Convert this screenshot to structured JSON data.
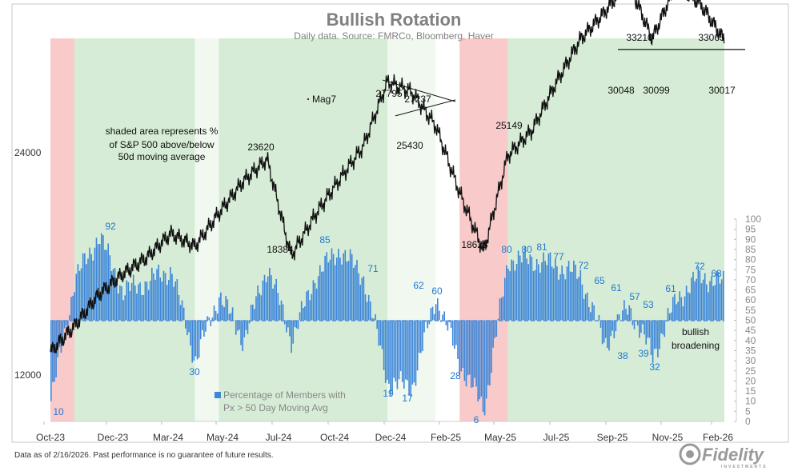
{
  "chart_data": {
    "type": "line",
    "title": "Bullish Rotation",
    "subtitle": "Daily data.  Source: FMRCo, Bloomberg, Haver",
    "x_tick_labels": [
      "Oct-23",
      "Dec-23",
      "Mar-24",
      "May-24",
      "Jul-24",
      "Oct-24",
      "Dec-24",
      "Feb-25",
      "May-25",
      "Jul-25",
      "Sep-25",
      "Nov-25",
      "Feb-26"
    ],
    "left_axis": {
      "ticks": [
        "24000",
        "12000"
      ]
    },
    "right_axis": {
      "ticks": [
        "100",
        "95",
        "90",
        "85",
        "80",
        "75",
        "70",
        "65",
        "60",
        "55",
        "50",
        "45",
        "40",
        "35",
        "30",
        "25",
        "20",
        "15",
        "10",
        "5",
        "0"
      ],
      "range": [
        0,
        100
      ],
      "midline": 50
    },
    "series": [
      {
        "name": "Mag7",
        "kind": "price-line",
        "points": [
          [
            "Oct-23",
            13200
          ],
          [
            "Nov-23",
            14600
          ],
          [
            "Dec-23",
            16300
          ],
          [
            "Jan-24",
            17400
          ],
          [
            "Feb-24",
            18300
          ],
          [
            "Mar-24",
            19600
          ],
          [
            "Apr-24",
            18900
          ],
          [
            "May-24",
            20700
          ],
          [
            "Jun-24",
            22400
          ],
          [
            "Jul-24",
            23620
          ],
          [
            "Aug-24",
            18384
          ],
          [
            "Sep-24",
            20600
          ],
          [
            "Oct-24",
            22500
          ],
          [
            "Nov-24",
            24300
          ],
          [
            "Dec-24",
            27795
          ],
          [
            "Jan-25",
            27237
          ],
          [
            "Feb-25",
            25430
          ],
          [
            "Mar-25",
            21800
          ],
          [
            "Apr-25",
            18628
          ],
          [
            "May-25",
            23800
          ],
          [
            "Jun-25",
            25149
          ],
          [
            "Jul-25",
            27700
          ],
          [
            "Aug-25",
            30048
          ],
          [
            "Sep-25",
            31500
          ],
          [
            "Oct-25",
            33210
          ],
          [
            "Nov-25",
            30099
          ],
          [
            "Dec-25",
            33065
          ],
          [
            "Jan-26",
            32000
          ],
          [
            "Feb-26",
            30017
          ]
        ]
      },
      {
        "name": "Percentage of Members with Px > 50 Day Moving Avg",
        "kind": "bars",
        "points": [
          [
            "Oct-23",
            10
          ],
          [
            "Nov-23",
            70
          ],
          [
            "Dec-23",
            92
          ],
          [
            "Jan-24",
            64
          ],
          [
            "Feb-24",
            69
          ],
          [
            "Mar-24",
            75
          ],
          [
            "Apr-24",
            30
          ],
          [
            "May-24",
            63
          ],
          [
            "Jun-24",
            40
          ],
          [
            "Jul-24",
            77
          ],
          [
            "Aug-24",
            40
          ],
          [
            "Sep-24",
            72
          ],
          [
            "Oct-24",
            85
          ],
          [
            "Nov-24",
            71
          ],
          [
            "Dec-24",
            19
          ],
          [
            "Jan-25",
            17
          ],
          [
            "Feb-25",
            62
          ],
          [
            "Mar-25",
            28
          ],
          [
            "Apr-25",
            6
          ],
          [
            "May-25",
            80
          ],
          [
            "Jun-25",
            80
          ],
          [
            "Jul-25",
            77
          ],
          [
            "Aug-25",
            72
          ],
          [
            "Sep-25",
            38
          ],
          [
            "Oct-25",
            57
          ],
          [
            "Nov-25",
            32
          ],
          [
            "Dec-25",
            61
          ],
          [
            "Jan-26",
            72
          ],
          [
            "Feb-26",
            68
          ]
        ]
      }
    ],
    "price_labels": [
      "23620",
      "18384",
      "27795",
      "27237",
      "25430",
      "25149",
      "18628",
      "33210",
      "33065",
      "30048",
      "30099",
      "30017"
    ],
    "breadth_labels": [
      "92",
      "30",
      "85",
      "71",
      "10",
      "19",
      "17",
      "62",
      "60",
      "28",
      "6",
      "80",
      "80",
      "81",
      "77",
      "72",
      "65",
      "61",
      "57",
      "53",
      "38",
      "39",
      "32",
      "61",
      "72",
      "68"
    ],
    "notes": {
      "mag7": "Mag7",
      "shade": [
        "shaded area represents %",
        "of S&P 500 above/below",
        "50d moving average"
      ],
      "broaden": [
        "bullish",
        "broadening"
      ]
    },
    "legend": [
      "Percentage of Members with",
      "Px > 50 Day Moving Avg"
    ],
    "shading": {
      "green_color": "#6dbb6d",
      "red_color": "#f08a8a",
      "periods": [
        {
          "from": "Oct-23",
          "to": "Nov-23",
          "state": "red"
        },
        {
          "from": "Nov-23",
          "to": "Apr-24",
          "state": "green"
        },
        {
          "from": "Apr-24",
          "to": "May-24",
          "state": "light"
        },
        {
          "from": "May-24",
          "to": "Dec-24",
          "state": "green"
        },
        {
          "from": "Dec-24",
          "to": "Feb-25",
          "state": "light"
        },
        {
          "from": "Mar-25",
          "to": "May-25",
          "state": "red"
        },
        {
          "from": "May-25",
          "to": "Feb-26",
          "state": "green"
        }
      ]
    },
    "colors": {
      "bars": "#3d86d8",
      "price": "#111111",
      "trend": "#111111"
    }
  },
  "footnote": "Data as of 2/16/2026. Past performance is no guarantee of future results.",
  "logo": {
    "text": "Fidelity",
    "sub": "INVESTMENTS"
  }
}
